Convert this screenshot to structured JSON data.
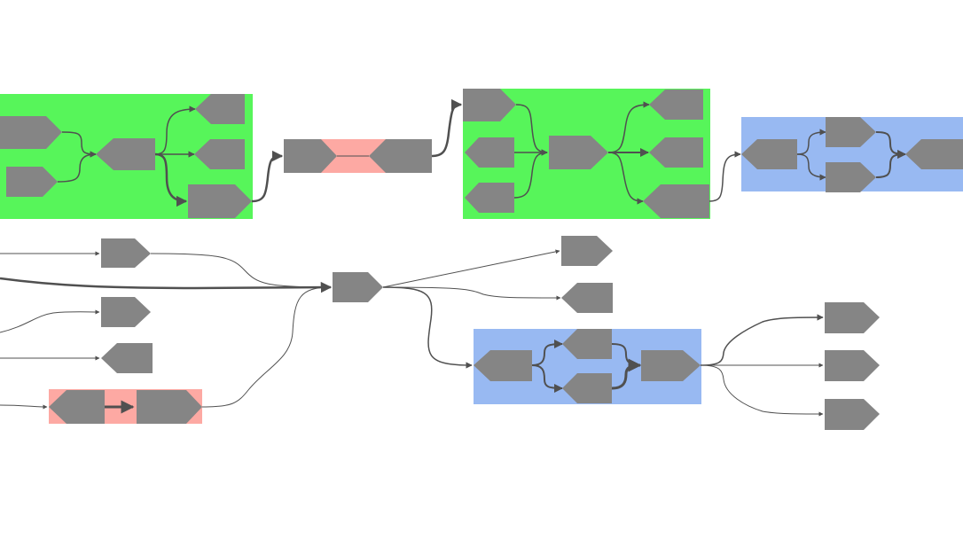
{
  "colors": {
    "background": "#ffffff",
    "node_fill": "#858585",
    "edge": "#505050",
    "group_green": "#57f55a",
    "group_red": "#fda9a3",
    "group_blue": "#98b9f2"
  },
  "diagram": {
    "type": "flow-graph",
    "labels_present": false,
    "node_shapes": [
      "arrow-right",
      "arrow-left",
      "chevron-both"
    ],
    "group_colors": [
      "green",
      "red",
      "blue"
    ],
    "group_count": 7,
    "node_count": 36
  }
}
